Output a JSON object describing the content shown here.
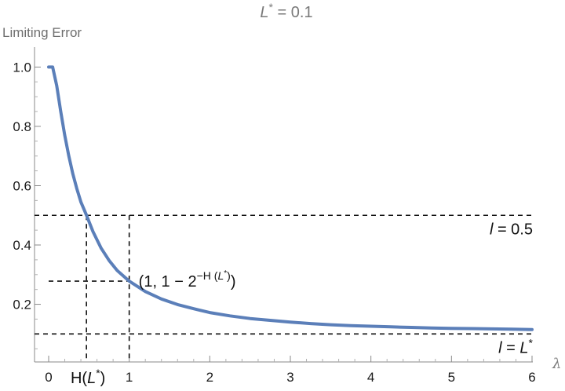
{
  "chart_data": {
    "type": "line",
    "title_parts": [
      "L",
      "*",
      " = 0.1"
    ],
    "ylabel": "Limiting Error",
    "xlabel": "λ",
    "xlim": [
      0,
      6
    ],
    "ylim": [
      0,
      1
    ],
    "x_ticks": [
      {
        "value": 0,
        "label": "0"
      },
      {
        "value": 1,
        "label": "1"
      },
      {
        "value": 2,
        "label": "2"
      },
      {
        "value": 3,
        "label": "3"
      },
      {
        "value": 4,
        "label": "4"
      },
      {
        "value": 5,
        "label": "5"
      },
      {
        "value": 6,
        "label": "6"
      }
    ],
    "x_special_tick": {
      "value": 0.469,
      "label_parts": [
        "H(",
        "L",
        "*",
        ")"
      ]
    },
    "y_ticks": [
      {
        "value": 0.2,
        "label": "0.2"
      },
      {
        "value": 0.4,
        "label": "0.4"
      },
      {
        "value": 0.6,
        "label": "0.6"
      },
      {
        "value": 0.8,
        "label": "0.8"
      },
      {
        "value": 1.0,
        "label": "1.0"
      }
    ],
    "grid": false,
    "series": [
      {
        "color": "#5b7fb9",
        "x": [
          0,
          0.05,
          0.1,
          0.15,
          0.2,
          0.25,
          0.3,
          0.35,
          0.4,
          0.47,
          0.55,
          0.65,
          0.75,
          0.85,
          1.0,
          1.2,
          1.4,
          1.6,
          1.8,
          2.0,
          2.25,
          2.5,
          2.75,
          3.0,
          3.25,
          3.5,
          3.75,
          4.0,
          4.25,
          4.5,
          4.75,
          5.0,
          5.25,
          5.5,
          5.75,
          6.0
        ],
        "y": [
          1.0,
          1.0,
          0.937,
          0.85,
          0.77,
          0.7,
          0.64,
          0.59,
          0.545,
          0.5,
          0.445,
          0.39,
          0.348,
          0.314,
          0.278,
          0.243,
          0.218,
          0.199,
          0.185,
          0.172,
          0.161,
          0.152,
          0.146,
          0.14,
          0.135,
          0.131,
          0.128,
          0.126,
          0.124,
          0.122,
          0.12,
          0.119,
          0.118,
          0.117,
          0.116,
          0.115
        ]
      }
    ],
    "reference_lines": [
      {
        "orientation": "horizontal",
        "y": 0.5,
        "label_parts": [
          "l",
          " = 0.5"
        ]
      },
      {
        "orientation": "horizontal",
        "y": 0.1,
        "label_parts": [
          "l",
          " = ",
          "L",
          "*"
        ]
      },
      {
        "orientation": "horizontal",
        "y": 0.278,
        "x_from": 0,
        "x_to": 1
      },
      {
        "orientation": "vertical",
        "x": 0.469,
        "y_from": 0,
        "y_to": 0.5
      },
      {
        "orientation": "vertical",
        "x": 1.0,
        "y_from": 0,
        "y_to": 0.5
      }
    ],
    "annotations": [
      {
        "x": 1.0,
        "y": 0.278,
        "text_parts": [
          "(1, 1 − 2",
          "−H (",
          "L",
          "*",
          ")",
          ")"
        ]
      }
    ]
  }
}
